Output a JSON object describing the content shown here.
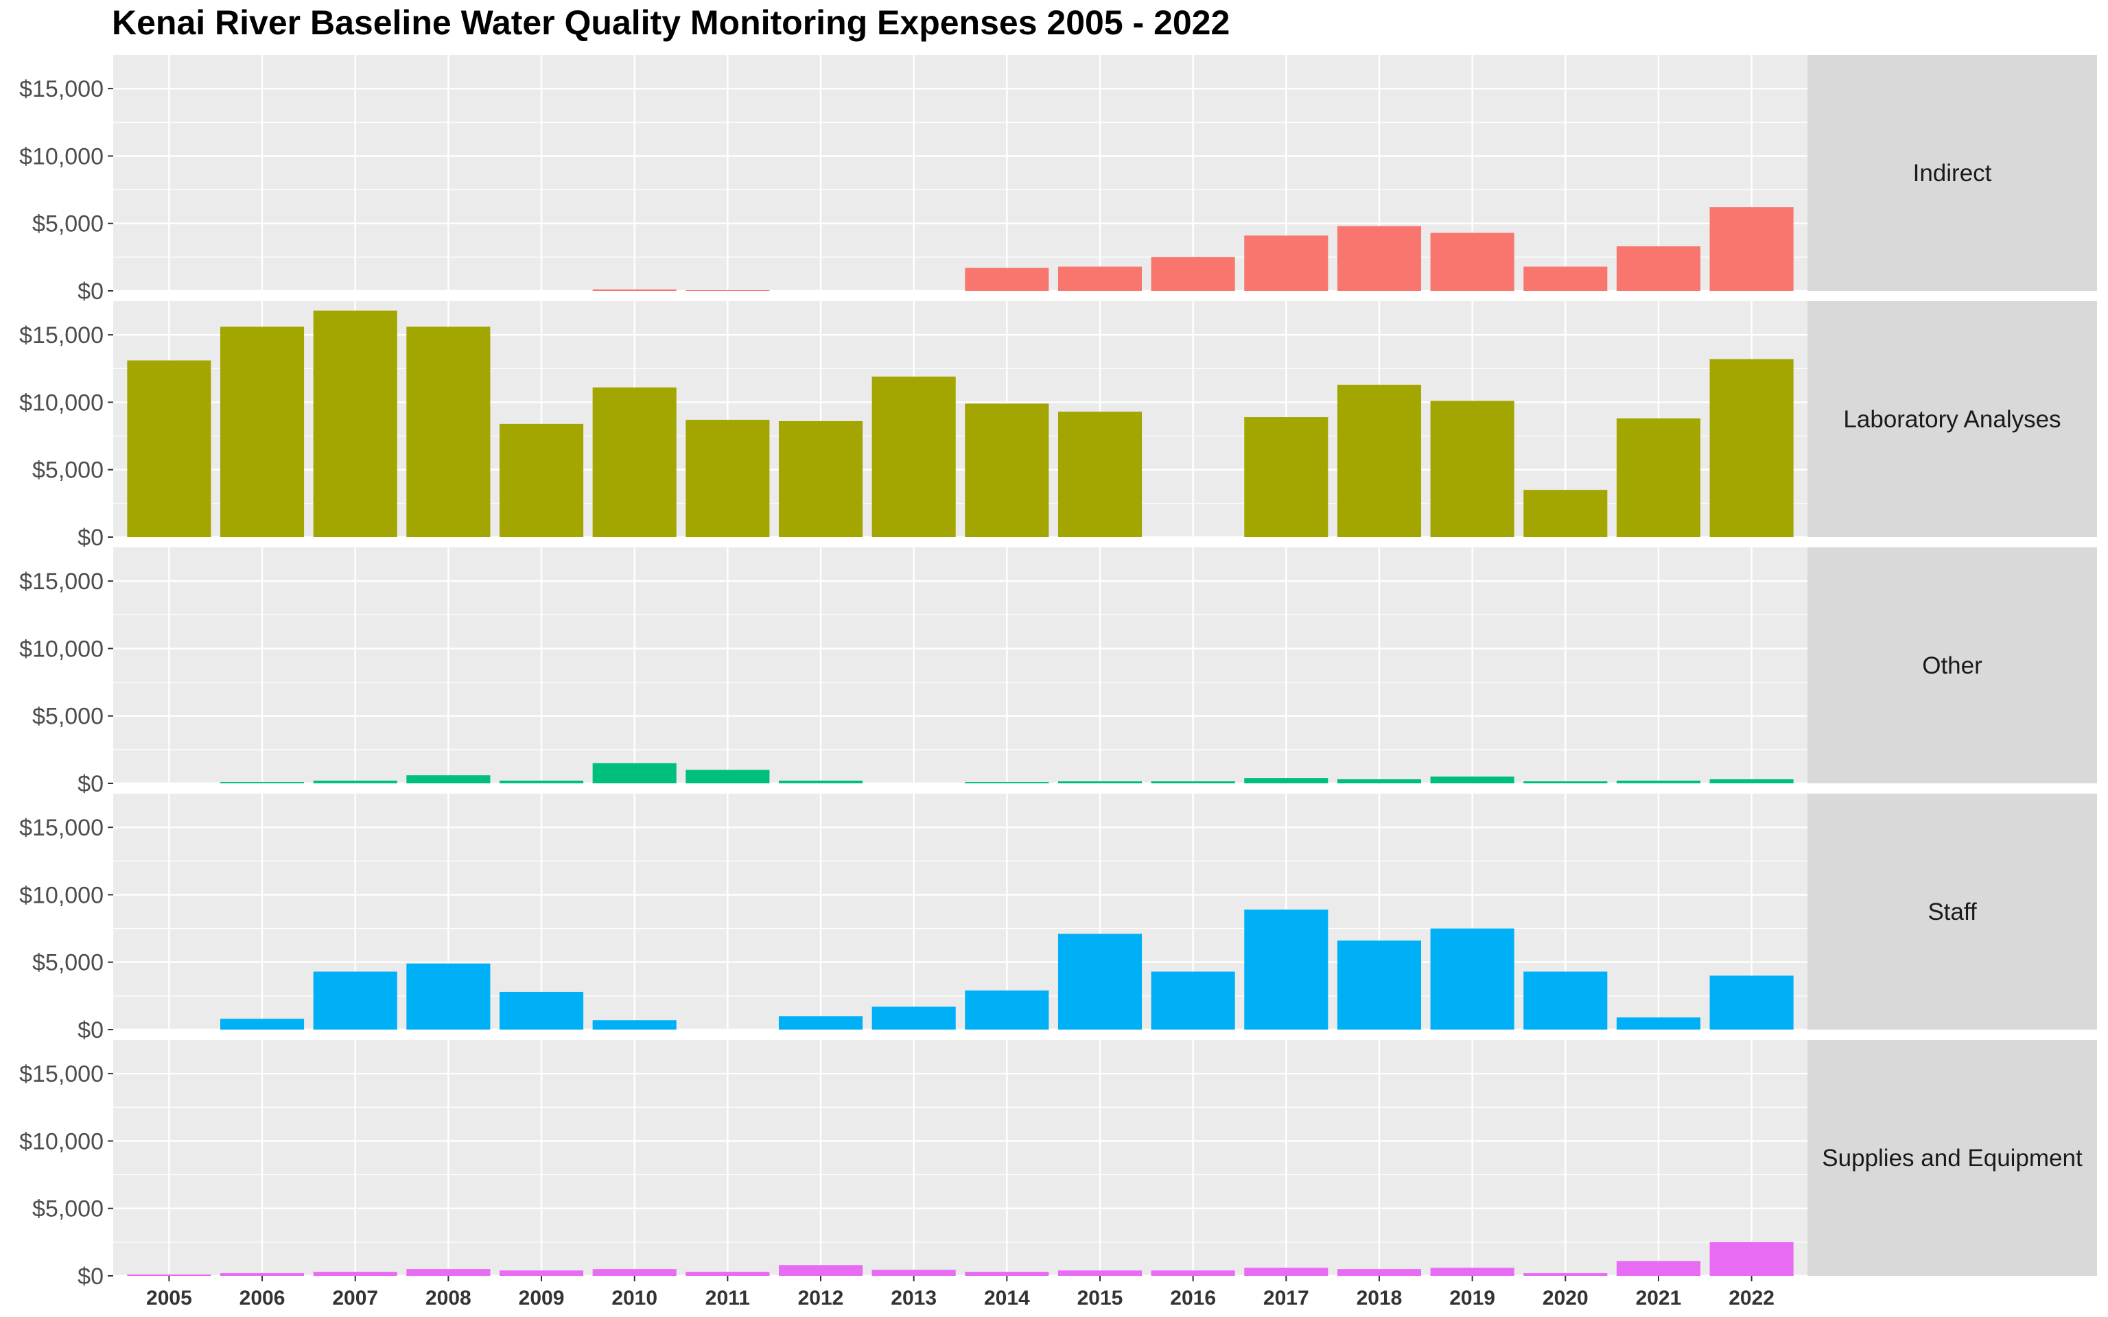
{
  "chart_data": {
    "type": "bar",
    "title": "Kenai River Baseline Water Quality Monitoring Expenses 2005 - 2022",
    "xlabel": "",
    "ylabel": "",
    "categories": [
      "2005",
      "2006",
      "2007",
      "2008",
      "2009",
      "2010",
      "2011",
      "2012",
      "2013",
      "2014",
      "2015",
      "2016",
      "2017",
      "2018",
      "2019",
      "2020",
      "2021",
      "2022"
    ],
    "ylim": [
      0,
      17500
    ],
    "y_ticks": [
      0,
      5000,
      10000,
      15000
    ],
    "y_tick_labels": [
      "$0",
      "$5,000",
      "$10,000",
      "$15,000"
    ],
    "grid": true,
    "facet_layout": "rows, strip labels on right",
    "series": [
      {
        "name": "Indirect",
        "color": "#F8766D",
        "values": [
          0,
          0,
          0,
          0,
          0,
          100,
          50,
          0,
          0,
          1700,
          1800,
          2500,
          4100,
          4800,
          4300,
          1800,
          3300,
          6200
        ]
      },
      {
        "name": "Laboratory Analyses",
        "color": "#A3A500",
        "values": [
          13100,
          15600,
          16800,
          15600,
          8400,
          11100,
          8700,
          8600,
          11900,
          9900,
          9300,
          0,
          8900,
          11300,
          10100,
          3500,
          8800,
          13200
        ]
      },
      {
        "name": "Other",
        "color": "#00BF7D",
        "values": [
          0,
          100,
          200,
          600,
          200,
          1500,
          1000,
          200,
          0,
          100,
          150,
          150,
          400,
          300,
          500,
          150,
          200,
          300
        ]
      },
      {
        "name": "Staff",
        "color": "#00B0F6",
        "values": [
          0,
          800,
          4300,
          4900,
          2800,
          700,
          0,
          1000,
          1700,
          2900,
          7100,
          4300,
          8900,
          6600,
          7500,
          4300,
          900,
          4000
        ]
      },
      {
        "name": "Supplies and Equipment",
        "color": "#E76BF3",
        "values": [
          100,
          200,
          300,
          500,
          400,
          500,
          300,
          800,
          450,
          300,
          400,
          400,
          600,
          500,
          600,
          200,
          1100,
          2500
        ]
      }
    ]
  },
  "colors": {
    "panel_background": "#EBEBEB",
    "grid_major": "#FFFFFF",
    "strip_background": "#D9D9D9"
  }
}
